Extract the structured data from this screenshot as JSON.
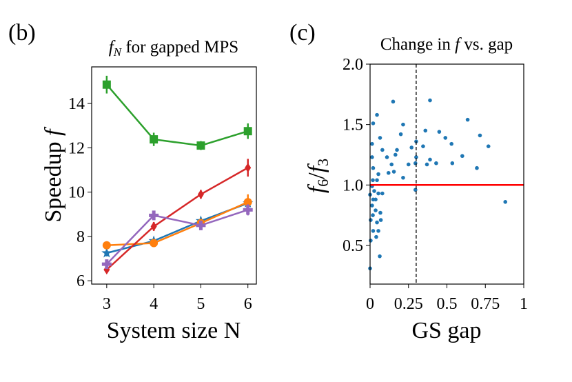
{
  "panel_labels": [
    "(b)",
    "(c)"
  ],
  "chart_data": [
    {
      "type": "line",
      "title": [
        "f",
        "N",
        " for gapped MPS"
      ],
      "x_label": "System size N",
      "y_label": [
        "Speedup ",
        "f"
      ],
      "x": [
        3,
        4,
        5,
        6
      ],
      "xlim": [
        2.68,
        6.18
      ],
      "xticks": [
        3,
        4,
        5,
        6
      ],
      "ylim": [
        5.85,
        15.65
      ],
      "yticks": [
        6,
        8,
        10,
        12,
        14
      ],
      "series": [
        {
          "color": "#1f77b4",
          "marker": "star",
          "values": [
            7.25,
            7.8,
            8.7,
            9.5
          ],
          "errors": [
            0.15,
            0.12,
            0.15,
            0.2
          ]
        },
        {
          "color": "#ff7f0e",
          "marker": "circle",
          "values": [
            7.6,
            7.7,
            8.6,
            9.55
          ],
          "errors": [
            0.1,
            0.1,
            0.2,
            0.35
          ]
        },
        {
          "color": "#2ca02c",
          "marker": "square",
          "values": [
            14.85,
            12.38,
            12.1,
            12.75
          ],
          "errors": [
            0.4,
            0.3,
            0.2,
            0.35
          ]
        },
        {
          "color": "#d62728",
          "marker": "diamond",
          "values": [
            6.5,
            8.45,
            9.9,
            11.1
          ],
          "errors": [
            0.15,
            0.2,
            0.2,
            0.4
          ]
        },
        {
          "color": "#9467bd",
          "marker": "plus",
          "values": [
            6.75,
            8.95,
            8.5,
            9.2
          ],
          "errors": [
            0.15,
            0.15,
            0.15,
            0.25
          ]
        }
      ]
    },
    {
      "type": "scatter",
      "title": [
        "Change in ",
        "f",
        " vs. gap"
      ],
      "x_label": "GS gap",
      "y_label": [
        "f",
        "6",
        "/",
        "f",
        "3"
      ],
      "xlim": [
        0,
        1
      ],
      "xticks": [
        0,
        0.25,
        0.5,
        0.75,
        1
      ],
      "ylim": [
        0.18,
        2
      ],
      "yticks": [
        0.5,
        {
          "value": 1,
          "label": "1.0"
        },
        1.5,
        {
          "value": 2,
          "label": "2.0"
        }
      ],
      "color": "#1f77b4",
      "hline": {
        "value": 1,
        "color": "#ff0000"
      },
      "vline": {
        "value": 0.3,
        "color": "#000000",
        "dashed": true
      },
      "x": [
        0.02,
        0.045,
        0.15,
        0.215,
        0.2,
        0.27,
        0.3,
        0.3,
        0.295,
        0.295,
        0.36,
        0.39,
        0.345,
        0.37,
        0.39,
        0.43,
        0.45,
        0.49,
        0.53,
        0.535,
        0.6,
        0.635,
        0.695,
        0.715,
        0.77,
        0.88,
        0.065,
        0.08,
        0.11,
        0.14,
        0.155,
        0.12,
        0.175,
        0.215,
        0.25,
        0.165,
        0.054,
        0.045,
        0.013,
        0.02,
        0.018,
        0.013,
        0.027,
        0.0,
        0.02,
        0.013,
        0.036,
        0.018,
        0.004,
        0.02,
        0.045,
        0.054,
        0.063,
        0.0,
        0.067,
        0.08,
        0.054,
        0.036,
        0.004,
        0.04,
        0.07,
        0.013
      ],
      "values": [
        1.51,
        1.58,
        1.69,
        1.5,
        1.42,
        1.31,
        1.36,
        1.23,
        1.18,
        0.96,
        1.45,
        1.7,
        1.32,
        1.17,
        1.21,
        1.18,
        1.44,
        1.39,
        1.34,
        1.18,
        1.24,
        1.54,
        1.14,
        1.41,
        1.32,
        0.86,
        1.39,
        1.29,
        1.23,
        1.17,
        1.11,
        1.1,
        1.29,
        1.06,
        1.17,
        1.25,
        1.09,
        1.04,
        1.23,
        1.14,
        1.04,
        0.99,
        0.95,
        0.92,
        0.88,
        0.83,
        0.79,
        0.75,
        0.71,
        0.62,
        0.69,
        0.62,
        0.41,
        0.31,
        0.77,
        0.93,
        0.93,
        0.88,
        0.54,
        0.57,
        0.71,
        1.34
      ]
    }
  ]
}
